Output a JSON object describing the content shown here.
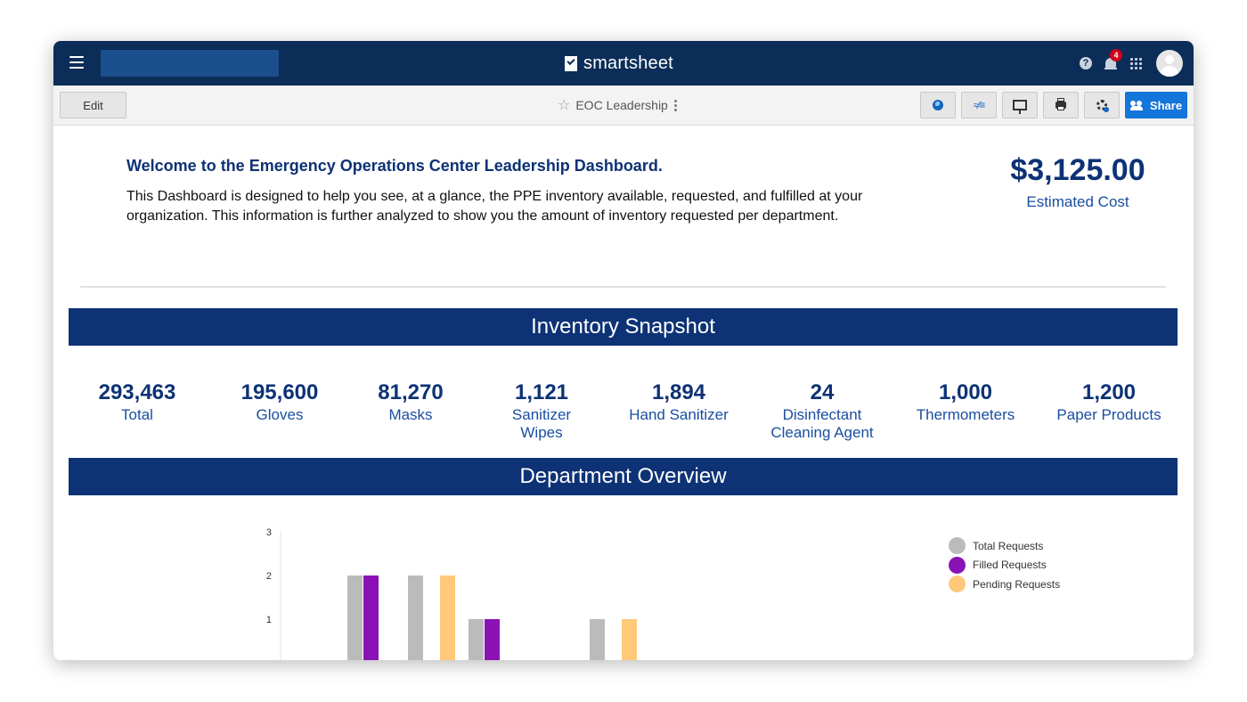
{
  "app": {
    "brand": "smartsheet",
    "notifications_count": "4",
    "help_glyph": "?"
  },
  "toolbar": {
    "edit_label": "Edit",
    "doc_title": "EOC Leadership",
    "share_label": "Share",
    "icons": [
      "globe-icon",
      "activity-log-icon",
      "presentation-icon",
      "print-icon",
      "settings-icon",
      "share-people-icon"
    ]
  },
  "welcome": {
    "title": "Welcome to the Emergency Operations Center Leadership Dashboard.",
    "body": "This Dashboard is designed to help you see, at a glance, the PPE inventory available, requested, and fulfilled at your organization. This information is further analyzed to show you the amount of inventory requested per department."
  },
  "cost": {
    "value": "$3,125.00",
    "label": "Estimated Cost"
  },
  "inventory": {
    "banner": "Inventory Snapshot",
    "metrics": [
      {
        "value": "293,463",
        "label": "Total"
      },
      {
        "value": "195,600",
        "label": "Gloves"
      },
      {
        "value": "81,270",
        "label": "Masks"
      },
      {
        "value": "1,121",
        "label": "Sanitizer Wipes"
      },
      {
        "value": "1,894",
        "label": "Hand Sanitizer"
      },
      {
        "value": "24",
        "label": "Disinfectant Cleaning Agent"
      },
      {
        "value": "1,000",
        "label": "Thermometers"
      },
      {
        "value": "1,200",
        "label": "Paper Products"
      }
    ]
  },
  "department": {
    "banner": "Department Overview"
  },
  "chart_data": {
    "type": "bar",
    "categories": [
      "",
      "",
      "",
      "",
      "",
      "",
      ""
    ],
    "series": [
      {
        "name": "Total Requests",
        "color": "#bbbbbb",
        "values": [
          2,
          2,
          1,
          0,
          1,
          0,
          0
        ]
      },
      {
        "name": "Filled Requests",
        "color": "#8a12b5",
        "values": [
          2,
          0,
          1,
          0,
          0,
          0,
          0
        ]
      },
      {
        "name": "Pending Requests",
        "color": "#ffc979",
        "values": [
          0,
          2,
          0,
          0,
          1,
          0,
          0
        ]
      }
    ],
    "yticks": [
      "1",
      "2",
      "3"
    ],
    "ylim": [
      0,
      3
    ],
    "legend": "top-right",
    "title": "",
    "xlabel": "",
    "ylabel": ""
  }
}
